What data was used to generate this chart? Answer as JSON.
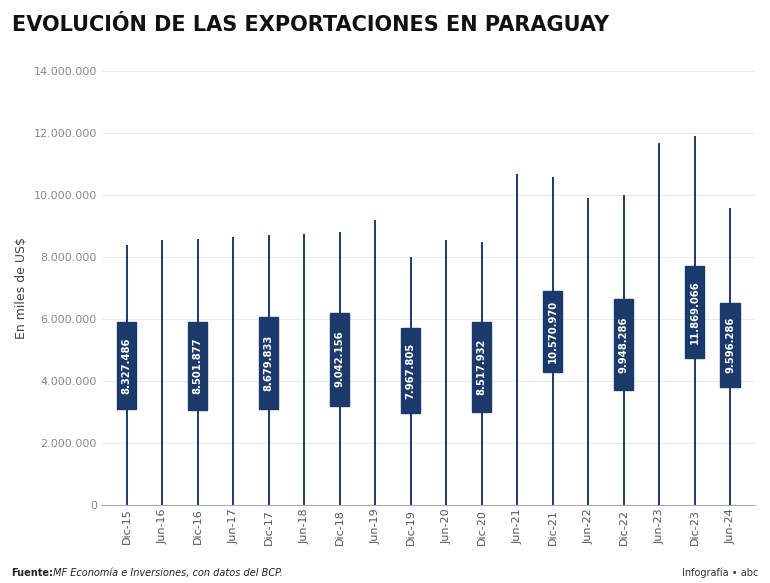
{
  "title": "EVOLUCIÓN DE LAS EXPORTACIONES EN PARAGUAY",
  "ylabel": "En miles de US$",
  "background_color": "#ffffff",
  "box_color": "#1b3a6b",
  "line_color": "#1b3a6b",
  "text_color": "#ffffff",
  "footer_source": "Fuente:",
  "footer_italic": " MF Economía e Inversiones, con datos del BCP.",
  "footer_right": "Infografía • abc",
  "ylim": [
    0,
    14000000
  ],
  "yticks": [
    0,
    2000000,
    4000000,
    6000000,
    8000000,
    10000000,
    12000000,
    14000000
  ],
  "categories": [
    "Dic-15",
    "Jun-16",
    "Dic-16",
    "Jun-17",
    "Dic-17",
    "Jun-18",
    "Dic-18",
    "Jun-19",
    "Dic-19",
    "Jun-20",
    "Dic-20",
    "Jun-21",
    "Dic-21",
    "Jun-22",
    "Dic-22",
    "Jun-23",
    "Dic-23",
    "Jun-24"
  ],
  "dic_positions": [
    0,
    2,
    4,
    6,
    8,
    10,
    12,
    14,
    16,
    17
  ],
  "dic_labels": [
    "8.327.486",
    "8.501.877",
    "8.679.833",
    "9.042.156",
    "7.967.805",
    "8.517.932",
    "10.570.970",
    "9.948.286",
    "11.869.066",
    "9.596.286"
  ],
  "dic_box_tops": [
    5900000,
    5900000,
    6050000,
    6200000,
    5700000,
    5900000,
    6900000,
    6650000,
    7700000,
    6500000
  ],
  "dic_box_bottoms": [
    3100000,
    3050000,
    3100000,
    3200000,
    2950000,
    3000000,
    4300000,
    3700000,
    4750000,
    3800000
  ],
  "dic_whisker_tops": [
    8400000,
    8600000,
    8700000,
    8800000,
    8000000,
    8500000,
    10600000,
    10000000,
    11900000,
    9600000
  ],
  "jun_positions": [
    1,
    3,
    5,
    7,
    9,
    11,
    13,
    15
  ],
  "jun_whisker_tops": [
    8550000,
    8650000,
    8750000,
    9200000,
    8550000,
    10700000,
    9900000,
    11700000
  ],
  "box_width": 0.55,
  "line_lw": 1.4
}
